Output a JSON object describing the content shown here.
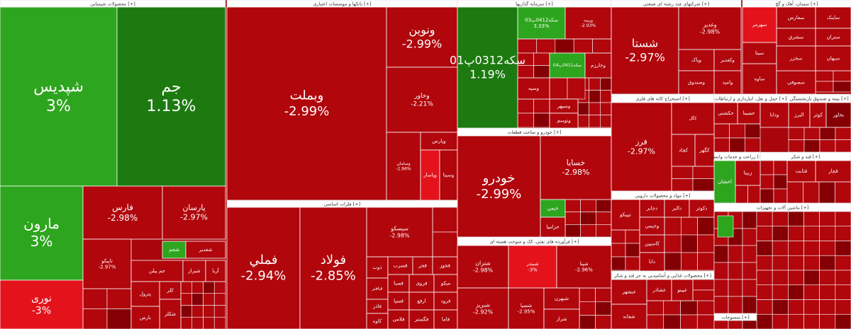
{
  "sectors": [
    {
      "title": "محصولات شیمیایی [+]",
      "tiles": [
        {
          "name": "شپدیس",
          "change": "3%"
        },
        {
          "name": "جم",
          "change": "1.13%"
        },
        {
          "name": "مارون",
          "change": "3%"
        },
        {
          "name": "نوری",
          "change": "-3%"
        },
        {
          "name": "فارس",
          "change": "-2.98%"
        },
        {
          "name": "پارسان",
          "change": "-2.97%"
        },
        {
          "name": "تاپیکو",
          "change": "-2.97%"
        },
        {
          "name": "شجم"
        },
        {
          "name": "شغدیر"
        },
        {
          "name": "جم پیلن"
        },
        {
          "name": "شیراز"
        },
        {
          "name": "آریا"
        },
        {
          "name": "پترول"
        },
        {
          "name": "کلر"
        },
        {
          "name": "شکلر"
        },
        {
          "name": "بارس"
        }
      ]
    },
    {
      "title": "بانکها و موسسات اعتباری [+]",
      "tiles": [
        {
          "name": "وبملت",
          "change": "-2.99%"
        },
        {
          "name": "ونوین",
          "change": "-2.99%"
        },
        {
          "name": "وخاور",
          "change": "-2.21%"
        },
        {
          "name": "وسامان",
          "change": "-2.96%"
        },
        {
          "name": "وپارس"
        },
        {
          "name": "وپاسار"
        },
        {
          "name": "وسینا"
        }
      ]
    },
    {
      "title": "فلزات اساسی [+]",
      "tiles": [
        {
          "name": "فملي",
          "change": "-2.94%"
        },
        {
          "name": "فولاد",
          "change": "-2.85%"
        },
        {
          "name": "سیسکو",
          "change": "-2.98%"
        },
        {
          "name": "ذوب"
        },
        {
          "name": "فباهنر"
        },
        {
          "name": "فاذر"
        },
        {
          "name": "کاوه"
        },
        {
          "name": "فسرب"
        },
        {
          "name": "فجر"
        },
        {
          "name": "فخوز"
        },
        {
          "name": "فصبا"
        },
        {
          "name": "فروی"
        },
        {
          "name": "میکو"
        },
        {
          "name": "فسپا"
        },
        {
          "name": "ارفع"
        },
        {
          "name": "فرود"
        },
        {
          "name": "فلامی"
        },
        {
          "name": "فگستر"
        },
        {
          "name": "فاما"
        }
      ]
    },
    {
      "title": "سرمایه گذاریها [+]",
      "tiles": [
        {
          "name": "سکه0312پ01",
          "change": "1.19%"
        },
        {
          "name": "سکه0412پ03",
          "change": "3.33%"
        },
        {
          "name": "وبیمه",
          "change": "-2.93%"
        },
        {
          "name": "سکه0411پ04"
        },
        {
          "name": "وخارزم"
        },
        {
          "name": "وسپه"
        },
        {
          "name": "وسپهر"
        },
        {
          "name": "وتوسم"
        }
      ]
    },
    {
      "title": "خودرو و ساخت قطعات [+]",
      "tiles": [
        {
          "name": "خودرو",
          "change": "-2.99%"
        },
        {
          "name": "خسایا",
          "change": "-2.98%"
        },
        {
          "name": "خبمن"
        },
        {
          "name": "خزامیا"
        }
      ]
    },
    {
      "title": "فرآورده های نفتی، کک و سوخت هسته ای [+]",
      "tiles": [
        {
          "name": "شتران",
          "change": "-2.98%"
        },
        {
          "name": "شبندر",
          "change": "-3%"
        },
        {
          "name": "شپنا",
          "change": "-2.96%"
        },
        {
          "name": "شبریز",
          "change": "-2.92%"
        },
        {
          "name": "شسپا",
          "change": "-2.95%"
        },
        {
          "name": "شبهرن"
        },
        {
          "name": "شراز"
        }
      ]
    },
    {
      "title": "شرکتهای چند رشته ای صنعتی [+]",
      "tiles": [
        {
          "name": "شستا",
          "change": "-2.97%"
        },
        {
          "name": "وغدیر",
          "change": "-2.98%"
        },
        {
          "name": "وپاک"
        },
        {
          "name": "وکغدیر"
        },
        {
          "name": "وصندوق"
        },
        {
          "name": "وامید"
        }
      ]
    },
    {
      "title": "سیمان، آهک و گچ [+]",
      "tiles": [
        {
          "name": "سفارس"
        },
        {
          "name": "سشرق"
        },
        {
          "name": "ساینک"
        },
        {
          "name": "ستران"
        },
        {
          "name": "ساوه"
        },
        {
          "name": "سیتا"
        },
        {
          "name": "سهرمز"
        },
        {
          "name": "سصوفی"
        },
        {
          "name": "سخزر"
        },
        {
          "name": "سبهان"
        }
      ]
    },
    {
      "title": "استخراج کانه های فلزی [+]",
      "tiles": [
        {
          "name": "فرز",
          "change": "-2.97%"
        },
        {
          "name": "کگل"
        },
        {
          "name": "کچاد"
        },
        {
          "name": "کگهر"
        }
      ]
    },
    {
      "title": "مواد و محصولات دارویی [+]",
      "tiles": [
        {
          "name": "تیپیکو"
        },
        {
          "name": "دجابر"
        },
        {
          "name": "دالبر"
        },
        {
          "name": "دکوثر"
        },
        {
          "name": "وخیمی"
        },
        {
          "name": "کاسپین"
        },
        {
          "name": "دانا"
        }
      ]
    },
    {
      "title": "محصولات غذایی و آشامیدنی به جز قند و شکر [+]",
      "tiles": [
        {
          "name": "غبشهر"
        },
        {
          "name": "شفانه"
        },
        {
          "name": "غشاذر"
        },
        {
          "name": "غپینو"
        }
      ]
    },
    {
      "title": "حمل و نقل، انبارداری و ارتباطات [+]",
      "tiles": [
        {
          "name": "حسینا"
        },
        {
          "name": "حکشتی"
        }
      ]
    },
    {
      "title": "بیمه و صندوق بازنشستگی [+]",
      "tiles": [
        {
          "name": "البرز"
        },
        {
          "name": "کوثر"
        },
        {
          "name": "ودانا"
        },
        {
          "name": "بخاور"
        }
      ]
    },
    {
      "title": "زراعت و خدمات وابسته [+]",
      "tiles": [
        {
          "name": "اخشان"
        },
        {
          "name": "زبینا"
        }
      ]
    },
    {
      "title": "قند و شکر [+]",
      "tiles": [
        {
          "name": "قچار"
        },
        {
          "name": "قثابت"
        }
      ]
    },
    {
      "title": "ماشین آلات و تجهیزات [+]",
      "tiles": []
    },
    {
      "title": "منسوجات [+]",
      "tiles": []
    }
  ]
}
